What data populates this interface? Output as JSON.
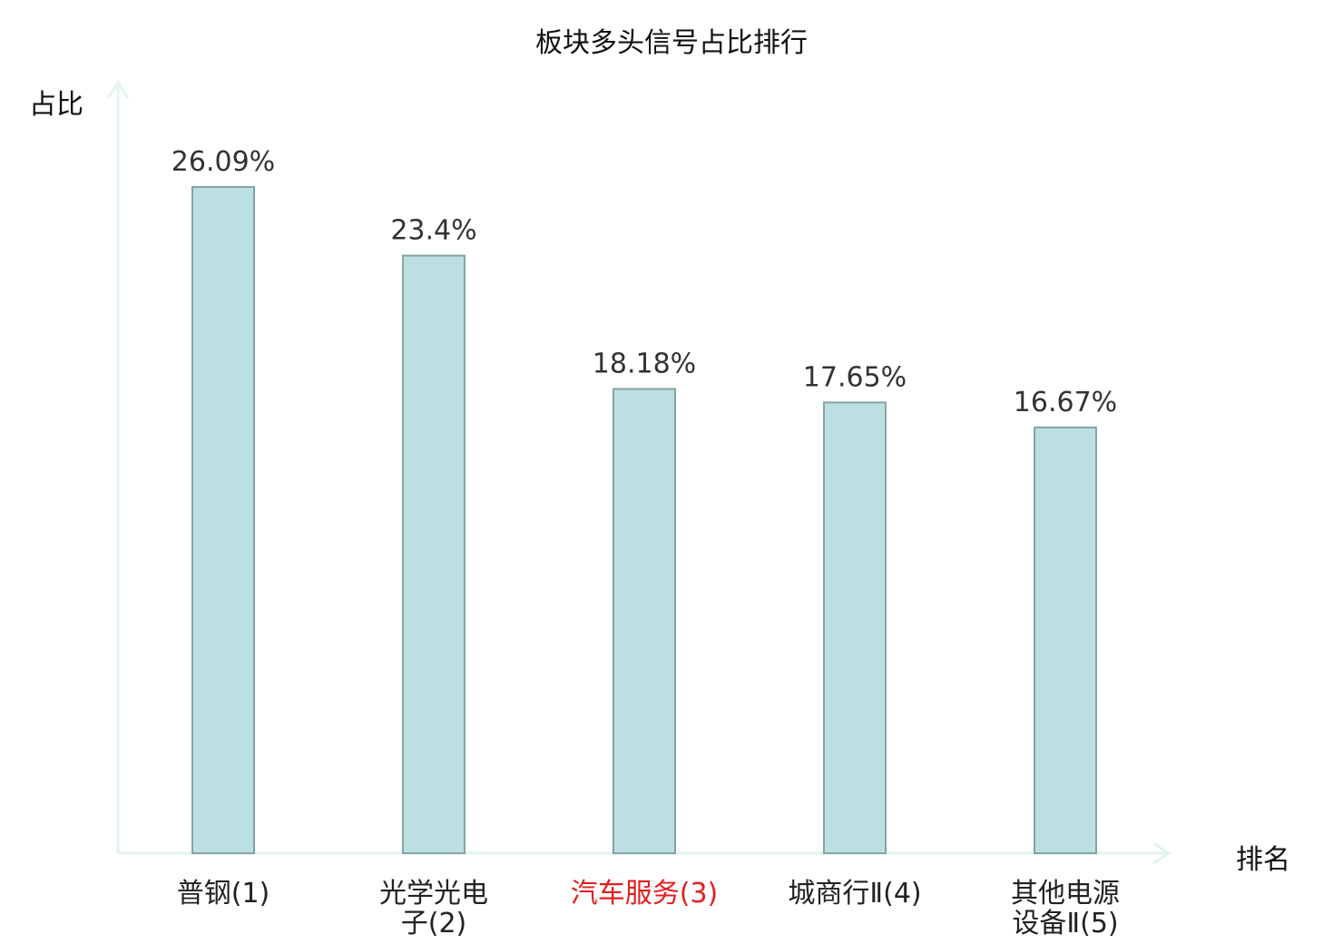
{
  "chart_data": {
    "type": "bar",
    "title": "板块多头信号占比排行",
    "xlabel": "排名",
    "ylabel": "占比",
    "categories": [
      "普钢(1)",
      "光学光电子(2)",
      "汽车服务(3)",
      "城商行Ⅱ(4)",
      "其他电源设备Ⅱ(5)"
    ],
    "category_lines": [
      [
        "普钢(1)"
      ],
      [
        "光学光电",
        "子(2)"
      ],
      [
        "汽车服务(3)"
      ],
      [
        "城商行Ⅱ(4)"
      ],
      [
        "其他电源",
        "设备Ⅱ(5)"
      ]
    ],
    "values": [
      26.09,
      23.4,
      18.18,
      17.65,
      16.67
    ],
    "value_labels": [
      "26.09%",
      "23.4%",
      "18.18%",
      "17.65%",
      "16.67%"
    ],
    "highlight_index": 2,
    "ylim": [
      0,
      29.5
    ],
    "grid": false,
    "legend": false
  },
  "colors": {
    "bar_fill": "#bce0e1",
    "bar_stroke": "#85a3a4",
    "axis": "#e2f3f1",
    "label_text": "#222222",
    "value_text": "#333333",
    "highlight_text": "#e02020"
  }
}
